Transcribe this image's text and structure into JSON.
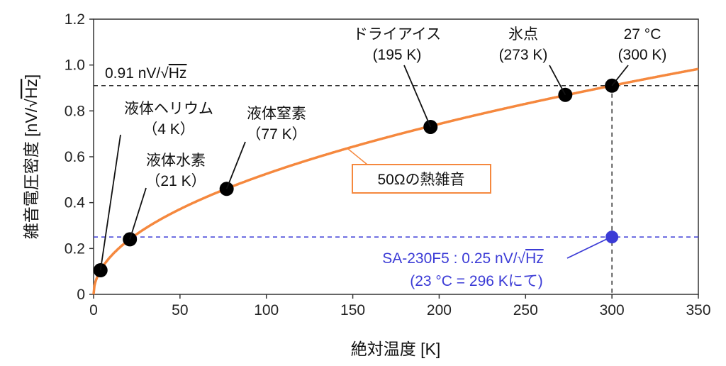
{
  "chart_data": {
    "type": "line",
    "xlabel": "絶対温度 [K]",
    "ylabel_prefix": "雑音電圧密度 [nV/√",
    "ylabel_overline": "Hz",
    "ylabel_suffix": "]",
    "xlim": [
      0,
      350
    ],
    "ylim": [
      0,
      1.2
    ],
    "xticks": [
      0,
      50,
      100,
      150,
      200,
      250,
      300,
      350
    ],
    "yticks": [
      "0",
      "0.2",
      "0.4",
      "0.6",
      "0.8",
      "1.0",
      "1.2"
    ],
    "yticks_values": [
      0,
      0.2,
      0.4,
      0.6,
      0.8,
      1.0,
      1.2
    ],
    "grid": false,
    "series": [
      {
        "name": "50Ωの熱雑音",
        "formula": "0.91*sqrt(T/300)",
        "color": "#f5883e"
      }
    ],
    "points": [
      {
        "x": 4,
        "y": 0.105,
        "label1": "液体ヘリウム",
        "label2": "（4 K）"
      },
      {
        "x": 21,
        "y": 0.24,
        "label1": "液体水素",
        "label2": "（21 K）"
      },
      {
        "x": 77,
        "y": 0.46,
        "label1": "液体窒素",
        "label2": "（77 K）"
      },
      {
        "x": 195,
        "y": 0.73,
        "label1": "ドライアイス",
        "label2": "(195 K)"
      },
      {
        "x": 273,
        "y": 0.87,
        "label1": "氷点",
        "label2": "(273 K)"
      },
      {
        "x": 300,
        "y": 0.91,
        "label1": "27 °C",
        "label2": "(300 K)"
      }
    ],
    "reference_line": {
      "y": 0.91,
      "label_prefix": "0.91 nV/√",
      "label_overline": "Hz"
    },
    "device": {
      "x": 300,
      "y": 0.25,
      "color": "#3b3bd6",
      "label_prefix": "SA-230F5 : 0.25 nV/√",
      "label_overline": "Hz",
      "label2": "(23 °C = 296 Kにて)"
    },
    "legend": {
      "text": "50Ωの熱雑音",
      "placement": "center"
    }
  }
}
